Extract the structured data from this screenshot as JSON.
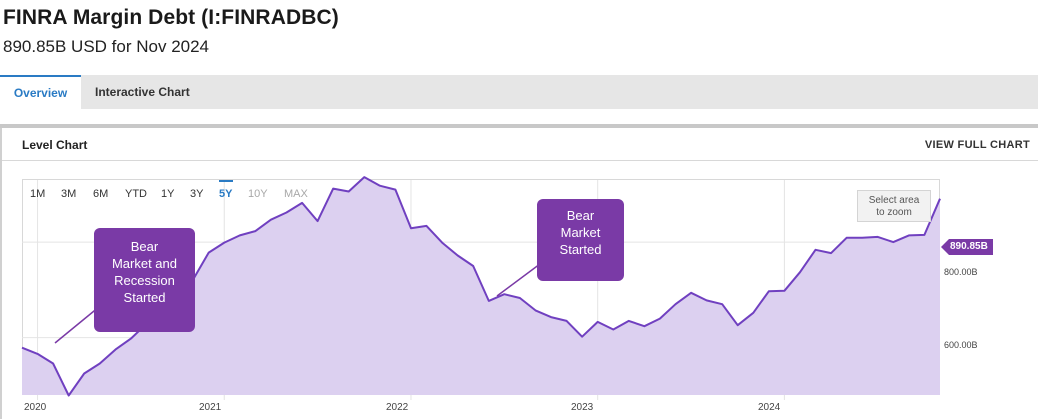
{
  "header": {
    "title": "FINRA Margin Debt (I:FINRADBC)",
    "subtitle": "890.85B USD for Nov 2024"
  },
  "tabs": [
    {
      "label": "Overview",
      "active": true
    },
    {
      "label": "Interactive Chart",
      "active": false
    }
  ],
  "panel": {
    "title": "Level Chart",
    "view_full_label": "VIEW FULL CHART"
  },
  "range_buttons": [
    {
      "label": "1M",
      "state": "normal"
    },
    {
      "label": "3M",
      "state": "normal"
    },
    {
      "label": "6M",
      "state": "normal"
    },
    {
      "label": "YTD",
      "state": "normal"
    },
    {
      "label": "1Y",
      "state": "normal"
    },
    {
      "label": "3Y",
      "state": "normal"
    },
    {
      "label": "5Y",
      "state": "active"
    },
    {
      "label": "10Y",
      "state": "disabled"
    },
    {
      "label": "MAX",
      "state": "disabled"
    }
  ],
  "zoom_hint": {
    "line1": "Select area",
    "line2": "to zoom"
  },
  "annotations": [
    {
      "lines": [
        "Bear",
        "Market and",
        "Recession",
        "Started"
      ]
    },
    {
      "lines": [
        "Bear",
        "Market",
        "Started"
      ]
    }
  ],
  "last_value_badge": "890.85B",
  "colors": {
    "accent": "#7a3aa6",
    "area_fill": "#dcd0f0",
    "line": "#7040c0",
    "tab_active": "#2a7bc4"
  },
  "chart_data": {
    "type": "area",
    "title": "",
    "xlabel": "",
    "ylabel": "",
    "x_tick_labels": [
      "2020",
      "2021",
      "2022",
      "2023",
      "2024"
    ],
    "y_tick_labels": [
      "600.00B",
      "800.00B"
    ],
    "y_ticks": [
      600,
      800
    ],
    "ylim": [
      480,
      930
    ],
    "x_range": [
      "2019-12",
      "2024-11"
    ],
    "series": [
      {
        "unit": "B USD",
        "points": [
          [
            "2019-12",
            579
          ],
          [
            "2020-01",
            566
          ],
          [
            "2020-02",
            546
          ],
          [
            "2020-03",
            479
          ],
          [
            "2020-04",
            525
          ],
          [
            "2020-05",
            546
          ],
          [
            "2020-06",
            575
          ],
          [
            "2020-07",
            598
          ],
          [
            "2020-08",
            629
          ],
          [
            "2020-09",
            655
          ],
          [
            "2020-10",
            660
          ],
          [
            "2020-11",
            722
          ],
          [
            "2020-12",
            778
          ],
          [
            "2021-01",
            799
          ],
          [
            "2021-02",
            814
          ],
          [
            "2021-03",
            823
          ],
          [
            "2021-04",
            847
          ],
          [
            "2021-05",
            862
          ],
          [
            "2021-06",
            882
          ],
          [
            "2021-07",
            844
          ],
          [
            "2021-08",
            912
          ],
          [
            "2021-09",
            906
          ],
          [
            "2021-10",
            936
          ],
          [
            "2021-11",
            918
          ],
          [
            "2021-12",
            910
          ],
          [
            "2022-01",
            829
          ],
          [
            "2022-02",
            834
          ],
          [
            "2022-03",
            799
          ],
          [
            "2022-04",
            772
          ],
          [
            "2022-05",
            750
          ],
          [
            "2022-06",
            677
          ],
          [
            "2022-07",
            691
          ],
          [
            "2022-08",
            683
          ],
          [
            "2022-09",
            657
          ],
          [
            "2022-10",
            643
          ],
          [
            "2022-11",
            635
          ],
          [
            "2022-12",
            602
          ],
          [
            "2023-01",
            633
          ],
          [
            "2023-02",
            617
          ],
          [
            "2023-03",
            635
          ],
          [
            "2023-04",
            624
          ],
          [
            "2023-05",
            640
          ],
          [
            "2023-06",
            670
          ],
          [
            "2023-07",
            694
          ],
          [
            "2023-08",
            678
          ],
          [
            "2023-09",
            670
          ],
          [
            "2023-10",
            626
          ],
          [
            "2023-11",
            652
          ],
          [
            "2023-12",
            697
          ],
          [
            "2024-01",
            698
          ],
          [
            "2024-02",
            737
          ],
          [
            "2024-03",
            784
          ],
          [
            "2024-04",
            777
          ],
          [
            "2024-05",
            809
          ],
          [
            "2024-06",
            809
          ],
          [
            "2024-07",
            811
          ],
          [
            "2024-08",
            800
          ],
          [
            "2024-09",
            814
          ],
          [
            "2024-10",
            815
          ],
          [
            "2024-11",
            890.85
          ]
        ]
      }
    ],
    "grid": true,
    "legend": "none"
  }
}
